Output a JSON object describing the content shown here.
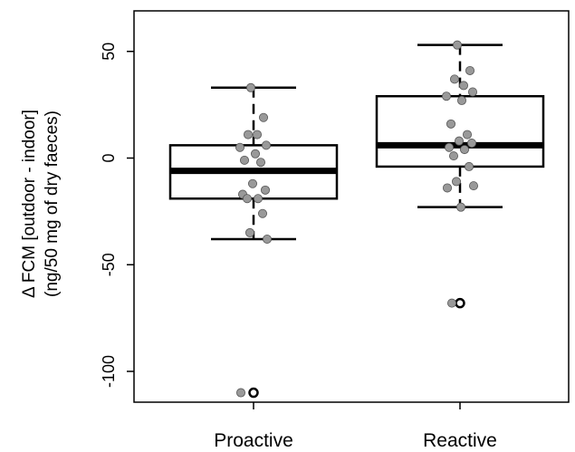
{
  "chart_data": {
    "type": "box",
    "categories": [
      "Proactive",
      "Reactive"
    ],
    "ylabel_line1": "Δ FCM [outdoor - indoor]",
    "ylabel_line2": "(ng/50 mg of dry faeces)",
    "ylim": [
      -115,
      70
    ],
    "yticks": [
      "50",
      "0",
      "-50",
      "-100"
    ],
    "ytick_values": [
      50,
      0,
      -50,
      -100
    ],
    "grid": false,
    "boxes": [
      {
        "name": "Proactive",
        "whisker_low": -38,
        "q1": -19,
        "median": -6,
        "q3": 6,
        "whisker_high": 33,
        "outliers": [
          -110
        ],
        "points": [
          33,
          19,
          11,
          11,
          6,
          5,
          2,
          -1,
          -2,
          -12,
          -15,
          -17,
          -19,
          -19,
          -26,
          -35,
          -38,
          -110
        ]
      },
      {
        "name": "Reactive",
        "whisker_low": -23,
        "q1": -4,
        "median": 6,
        "q3": 29,
        "whisker_high": 53,
        "outliers": [
          -68
        ],
        "points": [
          53,
          41,
          37,
          34,
          31,
          29,
          27,
          16,
          11,
          8,
          7,
          5,
          4,
          1,
          -4,
          -11,
          -13,
          -14,
          -23,
          -68
        ]
      }
    ],
    "colors": {
      "points": "#999999",
      "box": "#000000",
      "background": "#ffffff"
    }
  }
}
